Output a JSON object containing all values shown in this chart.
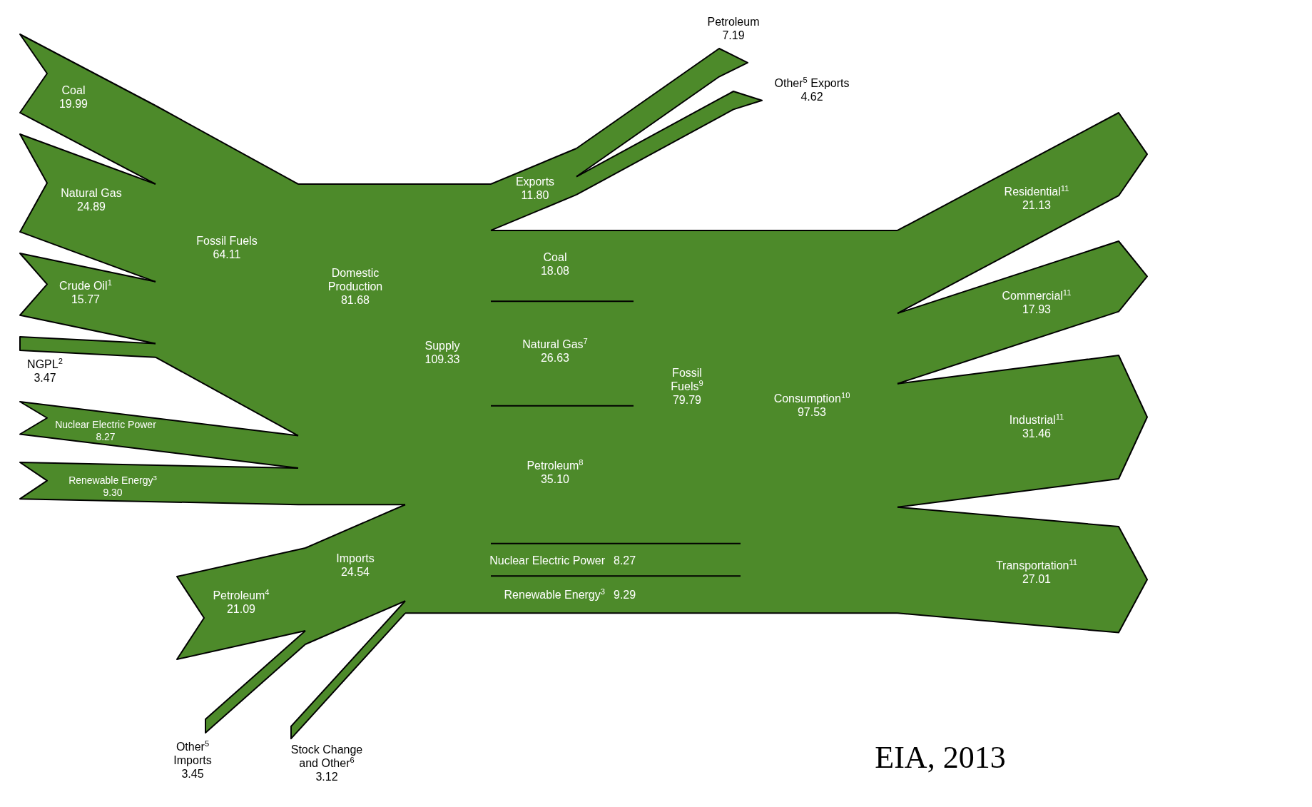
{
  "chart_data": {
    "type": "other",
    "color": "#4d8a2a",
    "categories": [
      "Coal",
      "Natural Gas",
      "Crude Oil$^{1}$",
      "NGPL$^{2}$",
      "Nuclear Electric Power",
      "Renewable Energy$^{3}$",
      "Fossil Fuels",
      "Domestic Production",
      "Petroleum$^{4}$",
      "Other$^{5}$ Imports",
      "Imports",
      "Stock Change and Other$^{6}$",
      "Supply",
      "Exports",
      "Petroleum",
      "Other$^{5}$ Exports",
      "Coal",
      "Natural Gas$^{7}$",
      "Petroleum$^{8}$",
      "Fossil Fuels$^{9}$",
      "Nuclear Electric Power",
      "Renewable Energy$^{3}$",
      "Consumption$^{10}$",
      "Residential$^{11}$",
      "Commercial$^{11}$",
      "Industrial$^{11}$",
      "Transportation$^{11}$"
    ],
    "values": [
      19.99,
      24.89,
      15.77,
      3.47,
      8.27,
      9.3,
      64.11,
      81.68,
      21.09,
      3.45,
      24.54,
      3.12,
      109.33,
      11.8,
      7.19,
      4.62,
      18.08,
      26.63,
      35.1,
      79.79,
      8.27,
      9.29,
      97.53,
      21.13,
      17.93,
      31.46,
      27.01
    ],
    "value_labels": [
      "19.99",
      "24.89",
      "15.77",
      "3.47",
      "8.27",
      "9.30",
      "64.11",
      "81.68",
      "21.09",
      "3.45",
      "24.54",
      "3.12",
      "109.33",
      "11.80",
      "7.19",
      "4.62",
      "18.08",
      "26.63",
      "35.10",
      "79.79",
      "8.27",
      "9.29",
      "97.53",
      "21.13",
      "17.93",
      "31.46",
      "27.01"
    ],
    "annotations": [
      "EIA, 2013"
    ]
  }
}
